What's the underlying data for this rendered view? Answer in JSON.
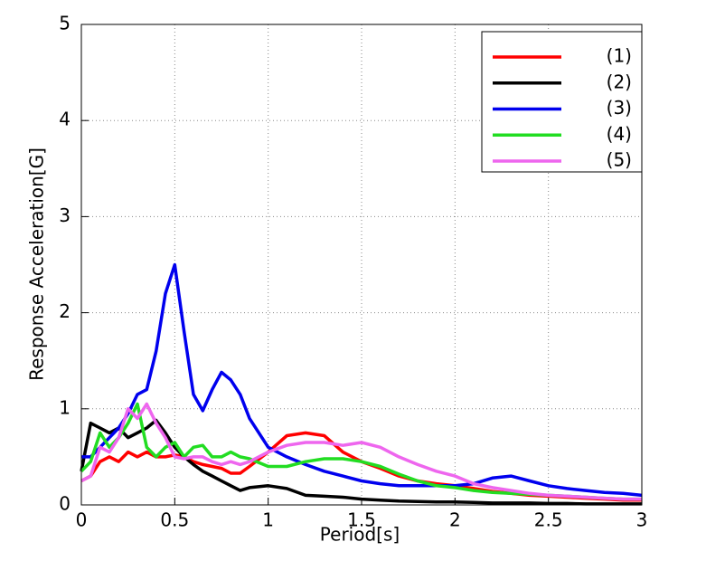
{
  "chart_data": {
    "type": "line",
    "xlabel": "Period[s]",
    "ylabel": "Response Acceleration[G]",
    "x": [
      0,
      0.05,
      0.1,
      0.15,
      0.2,
      0.25,
      0.3,
      0.35,
      0.4,
      0.45,
      0.5,
      0.55,
      0.6,
      0.65,
      0.7,
      0.75,
      0.8,
      0.85,
      0.9,
      1.0,
      1.1,
      1.2,
      1.3,
      1.4,
      1.5,
      1.6,
      1.7,
      1.8,
      1.9,
      2.0,
      2.1,
      2.2,
      2.3,
      2.4,
      2.5,
      2.6,
      2.7,
      2.8,
      2.9,
      3.0
    ],
    "series": [
      {
        "name": "(1)",
        "color": "#ff0000",
        "values": [
          0.25,
          0.3,
          0.45,
          0.5,
          0.45,
          0.55,
          0.5,
          0.55,
          0.5,
          0.5,
          0.52,
          0.5,
          0.45,
          0.42,
          0.4,
          0.38,
          0.33,
          0.33,
          0.4,
          0.55,
          0.72,
          0.75,
          0.72,
          0.55,
          0.45,
          0.38,
          0.3,
          0.25,
          0.22,
          0.2,
          0.17,
          0.14,
          0.12,
          0.1,
          0.09,
          0.08,
          0.07,
          0.06,
          0.05,
          0.05
        ]
      },
      {
        "name": "(2)",
        "color": "#000000",
        "values": [
          0.35,
          0.85,
          0.8,
          0.75,
          0.8,
          0.7,
          0.75,
          0.8,
          0.88,
          0.75,
          0.6,
          0.5,
          0.42,
          0.35,
          0.3,
          0.25,
          0.2,
          0.15,
          0.18,
          0.2,
          0.17,
          0.1,
          0.09,
          0.08,
          0.06,
          0.05,
          0.04,
          0.035,
          0.03,
          0.03,
          0.025,
          0.02,
          0.02,
          0.02,
          0.015,
          0.015,
          0.01,
          0.01,
          0.01,
          0.01
        ]
      },
      {
        "name": "(3)",
        "color": "#0000ee",
        "values": [
          0.5,
          0.5,
          0.6,
          0.7,
          0.8,
          0.95,
          1.15,
          1.2,
          1.6,
          2.2,
          2.5,
          1.8,
          1.15,
          0.98,
          1.2,
          1.38,
          1.3,
          1.15,
          0.9,
          0.6,
          0.5,
          0.42,
          0.35,
          0.3,
          0.25,
          0.22,
          0.2,
          0.2,
          0.2,
          0.2,
          0.22,
          0.28,
          0.3,
          0.25,
          0.2,
          0.17,
          0.15,
          0.13,
          0.12,
          0.1
        ]
      },
      {
        "name": "(4)",
        "color": "#22dd22",
        "values": [
          0.35,
          0.45,
          0.75,
          0.6,
          0.7,
          0.85,
          1.05,
          0.6,
          0.5,
          0.6,
          0.65,
          0.5,
          0.6,
          0.62,
          0.5,
          0.5,
          0.55,
          0.5,
          0.48,
          0.4,
          0.4,
          0.45,
          0.48,
          0.48,
          0.45,
          0.4,
          0.32,
          0.25,
          0.2,
          0.18,
          0.15,
          0.13,
          0.12,
          0.11,
          0.1,
          0.09,
          0.08,
          0.07,
          0.06,
          0.06
        ]
      },
      {
        "name": "(5)",
        "color": "#ee66ee",
        "values": [
          0.25,
          0.3,
          0.6,
          0.55,
          0.7,
          1.0,
          0.9,
          1.05,
          0.85,
          0.7,
          0.5,
          0.48,
          0.5,
          0.5,
          0.45,
          0.42,
          0.45,
          0.42,
          0.45,
          0.55,
          0.62,
          0.65,
          0.65,
          0.62,
          0.65,
          0.6,
          0.5,
          0.42,
          0.35,
          0.3,
          0.22,
          0.18,
          0.15,
          0.12,
          0.1,
          0.09,
          0.08,
          0.07,
          0.06,
          0.06
        ]
      }
    ],
    "xlim": [
      0,
      3
    ],
    "ylim": [
      0,
      5
    ],
    "xticks": [
      0,
      0.5,
      1,
      1.5,
      2,
      2.5,
      3
    ],
    "yticks": [
      0,
      1,
      2,
      3,
      4,
      5
    ],
    "grid": true,
    "legend": "upper right"
  }
}
